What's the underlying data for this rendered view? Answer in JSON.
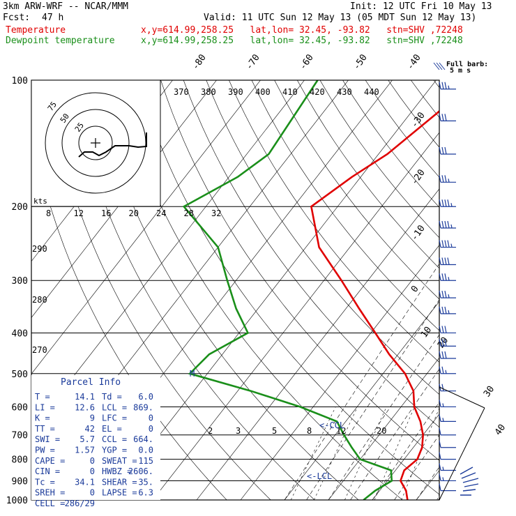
{
  "header": {
    "model": "3km ARW-WRF -- NCAR/MMM",
    "init": "Init: 12 UTC Fri 10 May 13",
    "fcst_label": "Fcst:",
    "fcst_value": "47 h",
    "valid": "Valid: 11 UTC Sun 12 May 13 (05 MDT Sun 12 May 13)",
    "temp_label": "Temperature",
    "dew_label": "Dewpoint temperature",
    "location": "x,y=614.99,258.25   lat,lon= 32.45, -93.82   stn=SHV ,72248",
    "temp_color": "#e00000",
    "dew_color": "#1a8f1a"
  },
  "barb_legend": {
    "line1": "Full barb:",
    "line2": "5 m s"
  },
  "pressure_labels": [
    "100",
    "200",
    "300",
    "400",
    "500",
    "600",
    "700",
    "800",
    "900",
    "1000"
  ],
  "isotherm_labels": [
    "-80",
    "-70",
    "-60",
    "-50",
    "-40",
    "-30",
    "-20",
    "-10",
    "0",
    "10",
    "20",
    "30",
    "40"
  ],
  "theta_labels": [
    "370",
    "380",
    "390",
    "400",
    "410",
    "420",
    "430",
    "440"
  ],
  "theta_left_labels": [
    "290",
    "280",
    "270"
  ],
  "mixing_labels": [
    "2",
    "3",
    "5",
    "8",
    "12",
    "20"
  ],
  "hodo": {
    "kts_label": "kts",
    "speed_labels": [
      "8",
      "12",
      "16",
      "20",
      "24",
      "28",
      "32"
    ],
    "ring_labels": [
      "75",
      "50",
      "25"
    ]
  },
  "markers": {
    "lcl1": "<-CCL",
    "lcl2": "<-LCL",
    "m": "M"
  },
  "parcel_title": "Parcel Info",
  "parcel_rows": [
    {
      "k1": "T",
      "v1": "14.1",
      "k2": "Td",
      "v2": "6.0"
    },
    {
      "k1": "LI",
      "v1": "12.6",
      "k2": "LCL",
      "v2": "869."
    },
    {
      "k1": "K",
      "v1": "9",
      "k2": "LFC",
      "v2": "0"
    },
    {
      "k1": "TT",
      "v1": "42",
      "k2": "EL",
      "v2": "0"
    },
    {
      "k1": "SWI",
      "v1": "5.7",
      "k2": "CCL",
      "v2": "664."
    },
    {
      "k1": "PW",
      "v1": "1.57",
      "k2": "YGP",
      "v2": "0.0"
    },
    {
      "k1": "CAPE",
      "v1": "0",
      "k2": "SWEAT",
      "v2": "115"
    },
    {
      "k1": "CIN",
      "v1": "0",
      "k2": "HWBZ",
      "v2": "2606."
    },
    {
      "k1": "Tc",
      "v1": "34.1",
      "k2": "SHEAR",
      "v2": "35."
    },
    {
      "k1": "SREH",
      "v1": "0",
      "k2": "LAPSE",
      "v2": "6.3"
    },
    {
      "k1": "CELL",
      "v1": "286/29",
      "k2": "",
      "v2": ""
    }
  ],
  "chart_data": {
    "type": "line",
    "title": "3km ARW-WRF -- NCAR/MMM",
    "x_axis": "temperature (C), skewed isotherms",
    "y_axis": "pressure (hPa), log scale",
    "ylim": [
      1000,
      100
    ],
    "series": [
      {
        "name": "Temperature",
        "color": "#e00000",
        "points": [
          [
            100,
            -41
          ],
          [
            120,
            -44
          ],
          [
            150,
            -48
          ],
          [
            170,
            -52
          ],
          [
            200,
            -56
          ],
          [
            250,
            -47
          ],
          [
            300,
            -36
          ],
          [
            350,
            -27
          ],
          [
            400,
            -19
          ],
          [
            450,
            -12
          ],
          [
            500,
            -5
          ],
          [
            550,
            0
          ],
          [
            600,
            3
          ],
          [
            650,
            7
          ],
          [
            700,
            10
          ],
          [
            750,
            12
          ],
          [
            800,
            13
          ],
          [
            850,
            12
          ],
          [
            900,
            13
          ],
          [
            950,
            16
          ],
          [
            1000,
            18
          ]
        ]
      },
      {
        "name": "Dewpoint temperature",
        "color": "#1a8f1a",
        "points": [
          [
            100,
            -77
          ],
          [
            150,
            -75
          ],
          [
            170,
            -78
          ],
          [
            200,
            -85
          ],
          [
            250,
            -70
          ],
          [
            300,
            -62
          ],
          [
            350,
            -55
          ],
          [
            400,
            -48
          ],
          [
            450,
            -53
          ],
          [
            500,
            -54
          ],
          [
            550,
            -37
          ],
          [
            600,
            -23
          ],
          [
            650,
            -12
          ],
          [
            700,
            -8
          ],
          [
            750,
            -4
          ],
          [
            800,
            0
          ],
          [
            850,
            9
          ],
          [
            900,
            11
          ],
          [
            950,
            9
          ],
          [
            1000,
            8
          ]
        ]
      }
    ],
    "wind_barbs": [
      {
        "p": 105,
        "kts": 35
      },
      {
        "p": 125,
        "kts": 30
      },
      {
        "p": 150,
        "kts": 30
      },
      {
        "p": 175,
        "kts": 35
      },
      {
        "p": 200,
        "kts": 45
      },
      {
        "p": 225,
        "kts": 45
      },
      {
        "p": 250,
        "kts": 45
      },
      {
        "p": 275,
        "kts": 40
      },
      {
        "p": 300,
        "kts": 35
      },
      {
        "p": 330,
        "kts": 35
      },
      {
        "p": 360,
        "kts": 35
      },
      {
        "p": 400,
        "kts": 30
      },
      {
        "p": 430,
        "kts": 30
      },
      {
        "p": 460,
        "kts": 30
      },
      {
        "p": 500,
        "kts": 25
      },
      {
        "p": 550,
        "kts": 20
      },
      {
        "p": 600,
        "kts": 15
      },
      {
        "p": 650,
        "kts": 15
      },
      {
        "p": 700,
        "kts": 10
      },
      {
        "p": 750,
        "kts": 10
      },
      {
        "p": 800,
        "kts": 10
      },
      {
        "p": 850,
        "kts": 15
      },
      {
        "p": 900,
        "kts": 15
      },
      {
        "p": 950,
        "kts": 10
      }
    ]
  }
}
